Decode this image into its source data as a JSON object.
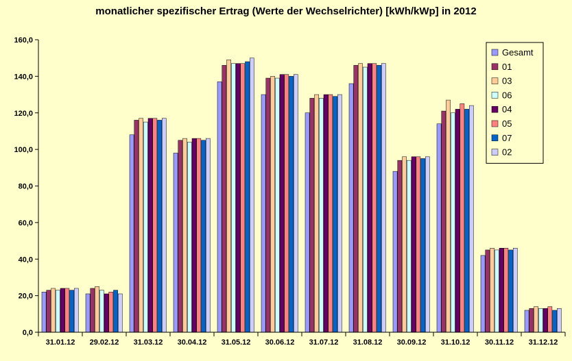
{
  "chart_data": {
    "type": "bar",
    "title": "monatlicher spezifischer Ertrag (Werte der Wechselrichter) [kWh/kWp] in 2012",
    "xlabel": "",
    "ylabel": "",
    "ylim": [
      0,
      160
    ],
    "ytick_step": 20,
    "y_tick_labels": [
      "0,0",
      "20,0",
      "40,0",
      "60,0",
      "80,0",
      "100,0",
      "120,0",
      "140,0",
      "160,0"
    ],
    "grid": false,
    "legend_position": "top-right",
    "categories": [
      "31.01.12",
      "29.02.12",
      "31.03.12",
      "30.04.12",
      "31.05.12",
      "30.06.12",
      "31.07.12",
      "31.08.12",
      "30.09.12",
      "31.10.12",
      "30.11.12",
      "31.12.12"
    ],
    "series": [
      {
        "name": "Gesamt",
        "color": "#9999ff",
        "values": [
          22,
          21,
          108,
          98,
          137,
          130,
          120,
          136,
          88,
          114,
          42,
          12
        ]
      },
      {
        "name": "01",
        "color": "#993366",
        "values": [
          23,
          24,
          116,
          105,
          146,
          139,
          128,
          146,
          94,
          121,
          45,
          13
        ]
      },
      {
        "name": "03",
        "color": "#ffcc99",
        "values": [
          24,
          25,
          117,
          106,
          149,
          140,
          130,
          147,
          96,
          127,
          46,
          14
        ]
      },
      {
        "name": "06",
        "color": "#ccffff",
        "values": [
          23,
          23,
          115,
          104,
          147,
          139,
          128,
          145,
          94,
          120,
          45,
          13
        ]
      },
      {
        "name": "04",
        "color": "#660066",
        "values": [
          24,
          21,
          117,
          106,
          147,
          141,
          130,
          147,
          96,
          122,
          46,
          13
        ]
      },
      {
        "name": "05",
        "color": "#ff8080",
        "values": [
          24,
          22,
          117,
          106,
          147,
          141,
          130,
          147,
          96,
          125,
          46,
          14
        ]
      },
      {
        "name": "07",
        "color": "#0066cc",
        "values": [
          23,
          23,
          116,
          105,
          148,
          140,
          129,
          146,
          95,
          122,
          45,
          12
        ]
      },
      {
        "name": "02",
        "color": "#ccccff",
        "values": [
          24,
          21,
          117,
          106,
          150,
          141,
          130,
          147,
          96,
          124,
          46,
          13
        ]
      }
    ]
  }
}
